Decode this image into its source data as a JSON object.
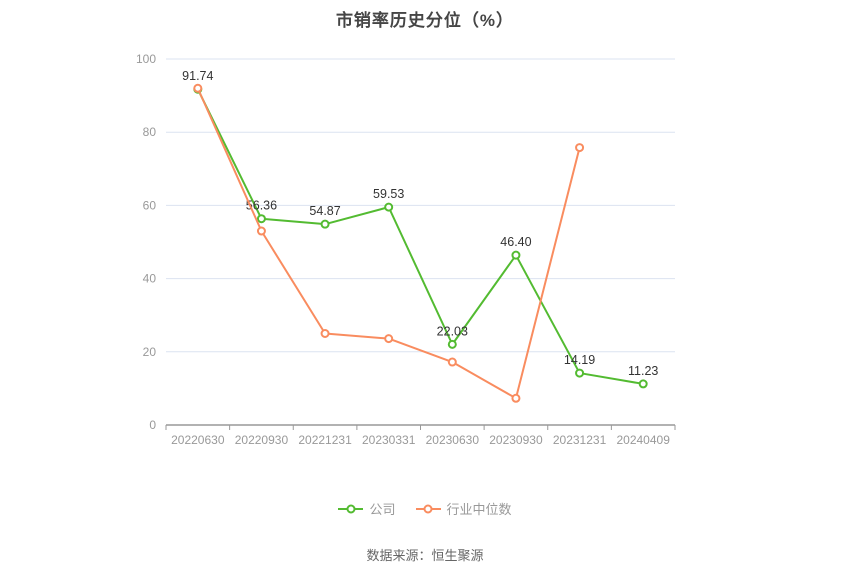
{
  "title": "市销率历史分位（%）",
  "footer": "数据来源：恒生聚源",
  "legend": {
    "company_label": "公司",
    "industry_label": "行业中位数"
  },
  "chart_data": {
    "type": "line",
    "title": "市销率历史分位（%）",
    "xlabel": "",
    "ylabel": "",
    "categories": [
      "20220630",
      "20220930",
      "20221231",
      "20230331",
      "20230630",
      "20230930",
      "20231231",
      "20240409"
    ],
    "series": [
      {
        "name": "公司",
        "color": "#53bb31",
        "show_labels": true,
        "values": [
          91.74,
          56.36,
          54.87,
          59.53,
          22.03,
          46.4,
          14.19,
          11.23
        ],
        "labels": [
          "91.74",
          "56.36",
          "54.87",
          "59.53",
          "22.03",
          "46.40",
          "14.19",
          "11.23"
        ]
      },
      {
        "name": "行业中位数",
        "color": "#f98c5f",
        "show_labels": false,
        "values": [
          92.0,
          53.0,
          25.0,
          23.6,
          17.2,
          7.3,
          75.8,
          null
        ],
        "labels": []
      }
    ],
    "ylim": [
      0,
      100
    ],
    "yticks": [
      0,
      20,
      40,
      60,
      80,
      100
    ],
    "grid": true,
    "legend_position": "bottom",
    "colors": {
      "grid_line": "#dbe3f1",
      "axis_line": "#666666",
      "axis_label": "#999999",
      "value_label": "#333333"
    }
  }
}
